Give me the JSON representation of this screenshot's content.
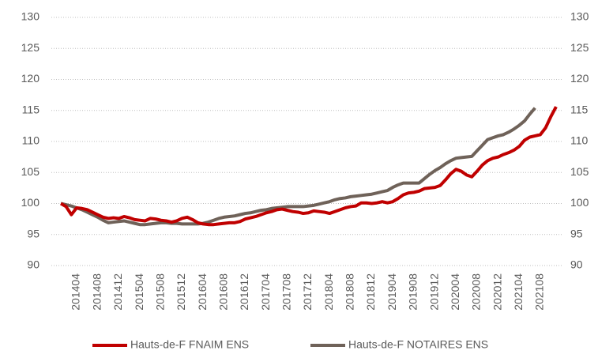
{
  "chart_data": {
    "type": "line",
    "categories": [
      null,
      null,
      null,
      "201404",
      null,
      null,
      null,
      "201408",
      null,
      null,
      null,
      "201412",
      null,
      null,
      null,
      "201504",
      null,
      null,
      null,
      "201508",
      null,
      null,
      null,
      "201512",
      null,
      null,
      null,
      "201604",
      null,
      null,
      null,
      "201608",
      null,
      null,
      null,
      "201612",
      null,
      null,
      null,
      "201704",
      null,
      null,
      null,
      "201708",
      null,
      null,
      null,
      "201712",
      null,
      null,
      null,
      "201804",
      null,
      null,
      null,
      "201808",
      null,
      null,
      null,
      "201812",
      null,
      null,
      null,
      "201904",
      null,
      null,
      null,
      "201908",
      null,
      null,
      null,
      "201912",
      null,
      null,
      null,
      "202004",
      null,
      null,
      null,
      "202008",
      null,
      null,
      null,
      "202012",
      null,
      null,
      null,
      "202104",
      null,
      null,
      null,
      "202108",
      null,
      null,
      null
    ],
    "series": [
      {
        "name": "Hauts-de-F FNAIM ENS",
        "color": "#c00000",
        "values": [
          100,
          99.5,
          98.2,
          99.3,
          99.2,
          99.0,
          98.6,
          98.2,
          97.8,
          97.6,
          97.7,
          97.6,
          97.9,
          97.7,
          97.4,
          97.3,
          97.2,
          97.6,
          97.5,
          97.3,
          97.2,
          97.0,
          97.2,
          97.6,
          97.8,
          97.4,
          96.9,
          96.7,
          96.6,
          96.6,
          96.7,
          96.8,
          96.9,
          96.9,
          97.1,
          97.5,
          97.7,
          97.9,
          98.2,
          98.5,
          98.7,
          99.0,
          99.1,
          98.9,
          98.7,
          98.6,
          98.4,
          98.5,
          98.8,
          98.7,
          98.6,
          98.4,
          98.7,
          99.0,
          99.3,
          99.5,
          99.6,
          100.1,
          100.1,
          100.0,
          100.1,
          100.3,
          100.1,
          100.3,
          100.8,
          101.4,
          101.7,
          101.8,
          102.0,
          102.4,
          102.5,
          102.6,
          102.9,
          103.8,
          104.8,
          105.5,
          105.2,
          104.6,
          104.3,
          105.2,
          106.2,
          106.9,
          107.3,
          107.5,
          107.9,
          108.2,
          108.6,
          109.2,
          110.2,
          110.7,
          110.9,
          111.1,
          112.2,
          114.0,
          115.6
        ]
      },
      {
        "name": "Hauts-de-F NOTAIRES ENS",
        "color": "#6f6259",
        "values": [
          100,
          99.8,
          99.6,
          99.3,
          99.0,
          98.6,
          98.2,
          97.8,
          97.3,
          96.9,
          97.0,
          97.1,
          97.2,
          97.0,
          96.8,
          96.6,
          96.6,
          96.7,
          96.8,
          96.9,
          96.9,
          96.8,
          96.8,
          96.7,
          96.7,
          96.7,
          96.7,
          96.8,
          97.0,
          97.3,
          97.6,
          97.8,
          97.9,
          98.0,
          98.2,
          98.4,
          98.5,
          98.7,
          98.9,
          99.0,
          99.2,
          99.3,
          99.4,
          99.5,
          99.5,
          99.5,
          99.5,
          99.6,
          99.7,
          99.9,
          100.1,
          100.3,
          100.6,
          100.8,
          100.9,
          101.1,
          101.2,
          101.3,
          101.4,
          101.5,
          101.7,
          101.9,
          102.1,
          102.6,
          103.0,
          103.3,
          103.3,
          103.3,
          103.3,
          104.0,
          104.7,
          105.3,
          105.8,
          106.4,
          106.9,
          107.3,
          107.4,
          107.5,
          107.6,
          108.5,
          109.4,
          110.3,
          110.6,
          110.9,
          111.1,
          111.5,
          112.0,
          112.6,
          113.3,
          114.4,
          115.4,
          null,
          null,
          null,
          null
        ]
      }
    ],
    "ylim": [
      90,
      130
    ],
    "yticks": [
      90,
      95,
      100,
      105,
      110,
      115,
      120,
      125,
      130
    ],
    "y2lim": [
      90,
      130
    ],
    "y2ticks": [
      90,
      95,
      100,
      105,
      110,
      115,
      120,
      125,
      130
    ],
    "grid": true,
    "legend": "bottom"
  }
}
